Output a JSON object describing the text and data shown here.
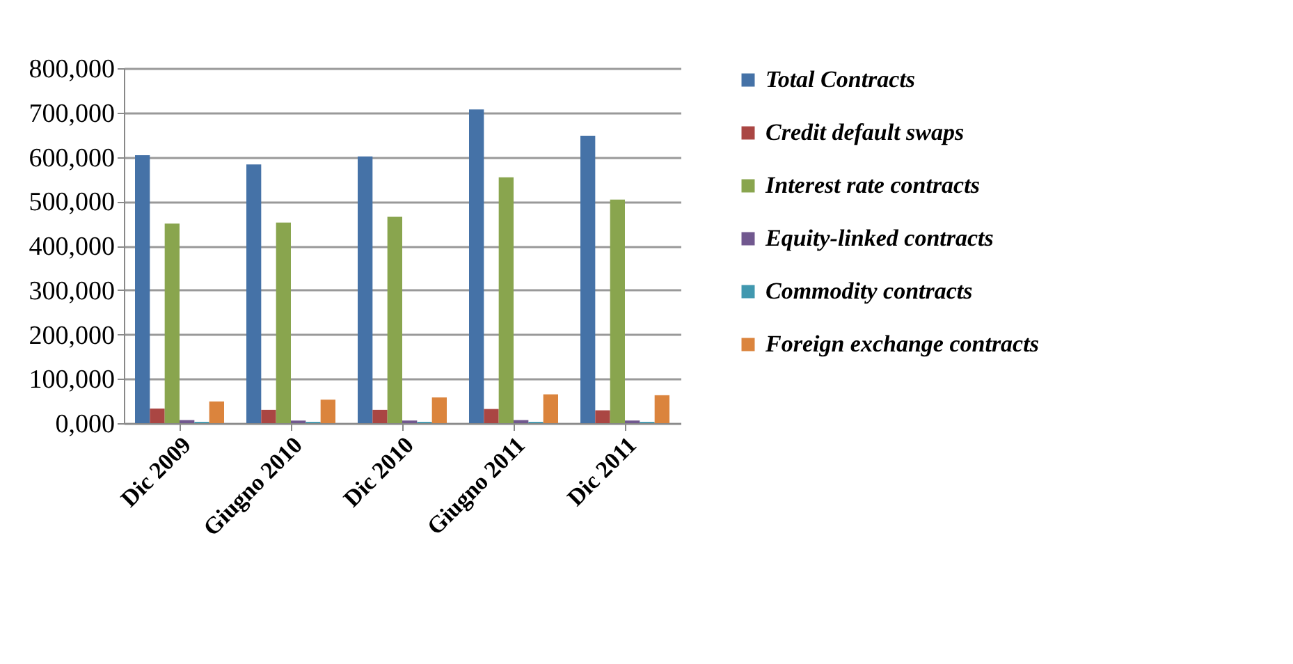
{
  "chart_data": {
    "type": "bar",
    "categories": [
      "Dic 2009",
      "Giugno 2010",
      "Dic 2010",
      "Giugno 2011",
      "Dic 2011"
    ],
    "series": [
      {
        "name": "Total Contracts",
        "color": "#4572a7",
        "values": [
          604000,
          583000,
          601000,
          707000,
          648000
        ]
      },
      {
        "name": "Credit default swaps",
        "color": "#aa4643",
        "values": [
          33000,
          30000,
          30000,
          32000,
          29000
        ]
      },
      {
        "name": "Interest rate contracts",
        "color": "#89a54e",
        "values": [
          450000,
          452000,
          465000,
          554000,
          504000
        ]
      },
      {
        "name": "Equity-linked contracts",
        "color": "#71588f",
        "values": [
          7000,
          6000,
          6000,
          7000,
          6000
        ]
      },
      {
        "name": "Commodity contracts",
        "color": "#4198af",
        "values": [
          3000,
          3000,
          3000,
          3000,
          3000
        ]
      },
      {
        "name": "Foreign exchange contracts",
        "color": "#db843d",
        "values": [
          49000,
          53000,
          58000,
          65000,
          63000
        ]
      }
    ],
    "ylim": [
      0,
      800000
    ],
    "yticks": [
      {
        "value": 0,
        "label": "0,000"
      },
      {
        "value": 100000,
        "label": "100,000"
      },
      {
        "value": 200000,
        "label": "200,000"
      },
      {
        "value": 300000,
        "label": "300,000"
      },
      {
        "value": 400000,
        "label": "400,000"
      },
      {
        "value": 500000,
        "label": "500,000"
      },
      {
        "value": 600000,
        "label": "600,000"
      },
      {
        "value": 700000,
        "label": "700,000"
      },
      {
        "value": 800000,
        "label": "800,000"
      }
    ],
    "grid": "y",
    "legend": "right"
  }
}
